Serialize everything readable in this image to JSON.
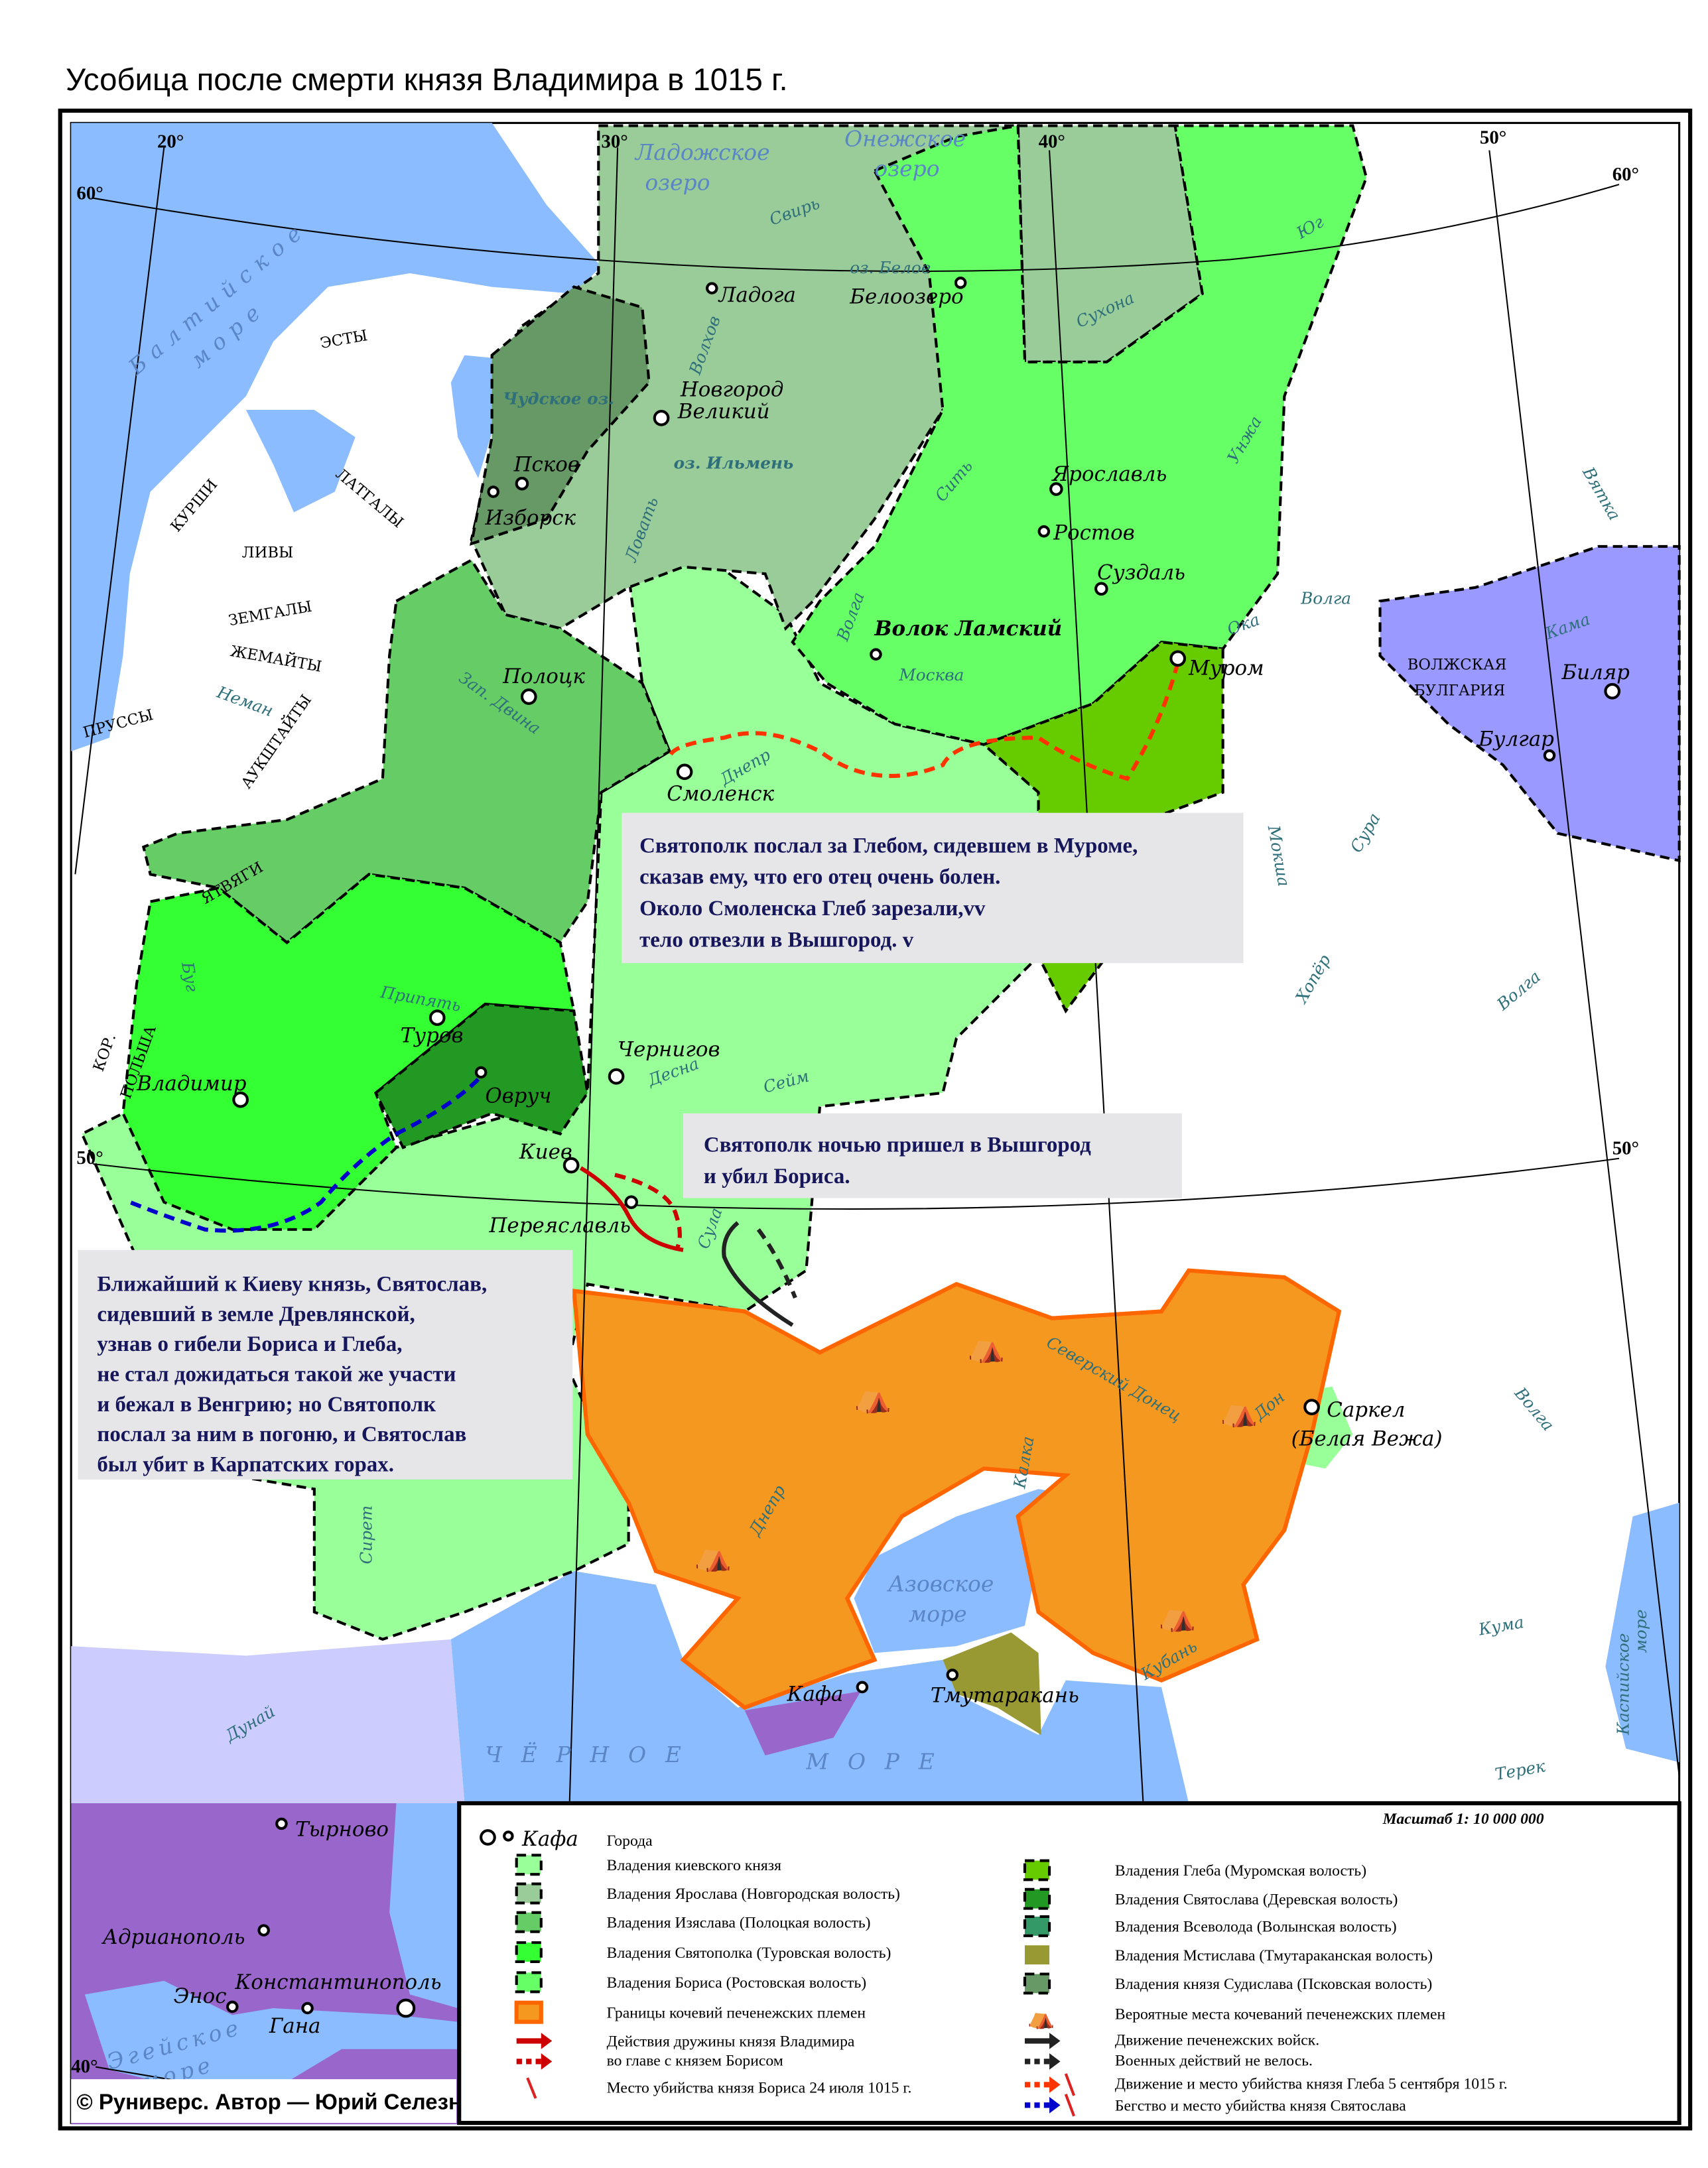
{
  "title": "Усобица после смерти князя Владимира в 1015 г.",
  "colors": {
    "sea": "#8bbcff",
    "land": "#ffffff",
    "kiev": "#99ff99",
    "yaroslav": "#99cc99",
    "izyaslav": "#66cc66",
    "svyatopolk": "#33ff33",
    "boris": "#66ff66",
    "pechenegs_fill": "#f5981f",
    "pechenegs_border": "#ff6600",
    "gleb": "#66cc00",
    "svyatoslav": "#229922",
    "vsevolod": "#339966",
    "mstislav": "#999933",
    "sudislav": "#669966",
    "volga_bulgaria": "#9999ff",
    "bulgaria": "#ccccff",
    "byzantium": "#9966cc",
    "textbox": "#e6e5e8",
    "textbox_text": "#16165a"
  },
  "degrees": [
    "20°",
    "30°",
    "40°",
    "50°",
    "60°",
    "60°",
    "50°",
    "50°",
    "40°"
  ],
  "cities": [
    "Ладога",
    "Белоозеро",
    "Новгород",
    "Великий",
    "Псков",
    "Изборск",
    "Ярославль",
    "Ростов",
    "Суздаль",
    "Волок Ламский",
    "Муром",
    "Полоцк",
    "Смоленск",
    "Туров",
    "Овруч",
    "Владимир",
    "Чернигов",
    "Киев",
    "Переяславль",
    "Саркел",
    "(Белая Вежа)",
    "Кафа",
    "Тмутаракань",
    "Тырново",
    "Адрианополь",
    "Энос",
    "Константинополь",
    "Гана",
    "Биляр",
    "Булгар"
  ],
  "waters": [
    "Ладожское",
    "озеро",
    "Онежское",
    "озеро",
    "Свирь",
    "оз. Белое",
    "Сухона",
    "Юг",
    "Волхов",
    "Чудское оз.",
    "оз. Ильмень",
    "Ловать",
    "Сить",
    "Унжа",
    "Вятка",
    "Волга",
    "Волга",
    "Ока",
    "Москва",
    "Кама",
    "Зап. Двина",
    "Неман",
    "Днепр",
    "Мокша",
    "Сура",
    "Хопёр",
    "Волга",
    "Припять",
    "Буг",
    "Десна",
    "Сейм",
    "Сула",
    "Северский Донец",
    "Дон",
    "Калка",
    "Днепр",
    "Азовское",
    "море",
    "Кубань",
    "Кума",
    "Волга",
    "Каспийское",
    "море",
    "Терек",
    "Сирет",
    "Дунай",
    "Балтийское",
    "море",
    "ЧЁРНОЕ",
    "МОРЕ",
    "Эгейское",
    "море"
  ],
  "peoples": [
    "ЭСТЫ",
    "КУРШИ",
    "ЛАТГАЛЫ",
    "ЛИВЫ",
    "ЗЕМГАЛЫ",
    "ЖЕМАЙТЫ",
    "АУКШТАЙТЫ",
    "ПРУССЫ",
    "ЯТВЯГИ",
    "КОР.",
    "ПОЛЬША",
    "ВОЛЖСКАЯ",
    "БУЛГАРИЯ"
  ],
  "textboxes": [
    [
      "Святополк послал за Глебом, сидевшем в Муроме,",
      "сказав ему, что его отец очень болен.",
      "Около Смоленска Глеб зарезали,vv",
      "тело отвезли в Вышгород. v"
    ],
    [
      "Святополк ночью пришел в Вышгород",
      "и убил Бориса."
    ],
    [
      "Ближайший к Киеву князь, Святослав,",
      "сидевший в земле Древлянской,",
      "узнав о гибели Бориса и Глеба,",
      "не стал дожидаться такой же участи",
      "и бежал в Венгрию; но Святополк",
      "послал за ним в погоню, и Святослав",
      "был убит в Карпатских горах."
    ]
  ],
  "legend": {
    "scale": "Масштаб 1: 10 000 000",
    "city_sample": "Кафа",
    "cities_label": "Города",
    "left": [
      "Владения киевского князя",
      "Владения Ярослава (Новгородская волость)",
      "Владения Изяслава (Полоцкая волость)",
      "Владения Святополка (Туровская волость)",
      "Владения Бориса (Ростовская волость)",
      "Границы кочевий печенежских племен",
      "Действия дружины князя Владимира",
      "во главе с князем Борисом",
      "Место убийства князя Бориса 24 июля 1015 г."
    ],
    "right": [
      "Владения Глеба (Муромская волость)",
      "Владения Святослава (Деревская волость)",
      "Владения Всеволода (Волынская волость)",
      "Владения Мстислава (Тмутараканская волость)",
      "Владения князя Судислава (Псковская волость)",
      "Вероятные места кочеваний печенежских племен",
      "Движение печенежских войск.",
      "Военных действий не велось.",
      "Движение и место убийства князя Глеба 5 сентября 1015 г.",
      "Бегство и место убийства князя Святослава"
    ]
  },
  "copyright": "© Руниверс. Автор — Юрий Селезнев"
}
